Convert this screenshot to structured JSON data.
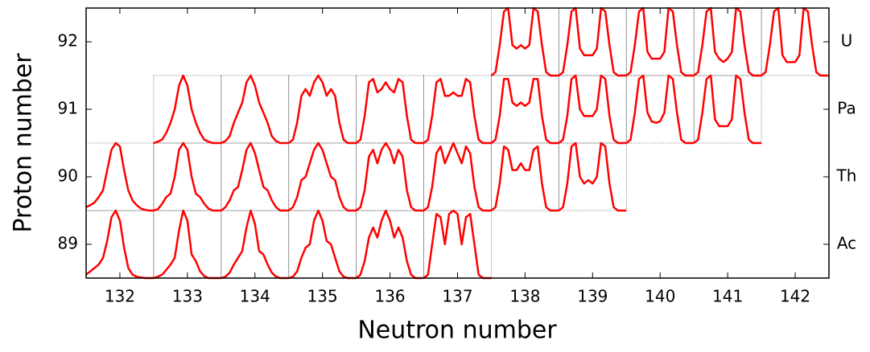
{
  "chart_data": {
    "type": "multiples",
    "xlabel": "Neutron number",
    "ylabel": "Proton number",
    "xlim": [
      131.5,
      142.5
    ],
    "xticks": [
      132,
      133,
      134,
      135,
      136,
      137,
      138,
      139,
      140,
      141,
      142
    ],
    "ylim": [
      88.5,
      92.5
    ],
    "yticks": [
      89,
      90,
      91,
      92
    ],
    "y2lim": [
      88.5,
      92.5
    ],
    "y2ticks": [
      {
        "value": 89,
        "label": "Ac"
      },
      {
        "value": 90,
        "label": "Th"
      },
      {
        "value": 91,
        "label": "Pa"
      },
      {
        "value": 92,
        "label": "U"
      }
    ],
    "value_lim": [
      0,
      1
    ],
    "color": "#ff0000",
    "cells": [
      {
        "n": 132,
        "z": 89,
        "values": [
          0.05,
          0.1,
          0.15,
          0.2,
          0.3,
          0.55,
          0.9,
          1,
          0.85,
          0.45,
          0.15,
          0.05,
          0.02,
          0.01,
          0,
          0,
          0
        ]
      },
      {
        "n": 133,
        "z": 89,
        "values": [
          0,
          0.02,
          0.05,
          0.12,
          0.2,
          0.3,
          0.7,
          1,
          0.85,
          0.35,
          0.25,
          0.1,
          0.03,
          0,
          0,
          0,
          0
        ]
      },
      {
        "n": 134,
        "z": 89,
        "values": [
          0,
          0.02,
          0.08,
          0.2,
          0.3,
          0.4,
          0.75,
          1,
          0.8,
          0.4,
          0.35,
          0.2,
          0.08,
          0.02,
          0,
          0,
          0
        ]
      },
      {
        "n": 135,
        "z": 89,
        "values": [
          0,
          0.02,
          0.1,
          0.3,
          0.45,
          0.5,
          0.85,
          1,
          0.85,
          0.55,
          0.5,
          0.3,
          0.1,
          0.02,
          0,
          0,
          0
        ]
      },
      {
        "n": 136,
        "z": 89,
        "values": [
          0,
          0.05,
          0.25,
          0.6,
          0.75,
          0.6,
          0.85,
          1,
          0.85,
          0.6,
          0.75,
          0.6,
          0.25,
          0.05,
          0,
          0,
          0
        ]
      },
      {
        "n": 137,
        "z": 89,
        "values": [
          0,
          0.05,
          0.5,
          0.95,
          0.9,
          0.5,
          0.95,
          1,
          0.95,
          0.5,
          0.9,
          0.95,
          0.5,
          0.05,
          0,
          0,
          0
        ]
      },
      {
        "n": 132,
        "z": 90,
        "values": [
          0.05,
          0.08,
          0.12,
          0.2,
          0.3,
          0.6,
          0.9,
          1,
          0.95,
          0.6,
          0.3,
          0.15,
          0.08,
          0.03,
          0.01,
          0,
          0
        ]
      },
      {
        "n": 133,
        "z": 90,
        "values": [
          0,
          0.02,
          0.1,
          0.2,
          0.25,
          0.5,
          0.9,
          1,
          0.9,
          0.5,
          0.25,
          0.2,
          0.1,
          0.03,
          0,
          0,
          0
        ]
      },
      {
        "n": 134,
        "z": 90,
        "values": [
          0,
          0.05,
          0.15,
          0.3,
          0.35,
          0.6,
          0.9,
          1,
          0.85,
          0.6,
          0.35,
          0.3,
          0.15,
          0.05,
          0,
          0,
          0
        ]
      },
      {
        "n": 135,
        "z": 90,
        "values": [
          0,
          0.05,
          0.2,
          0.45,
          0.5,
          0.7,
          0.9,
          1,
          0.9,
          0.7,
          0.5,
          0.45,
          0.2,
          0.05,
          0,
          0,
          0
        ]
      },
      {
        "n": 136,
        "z": 90,
        "values": [
          0,
          0.05,
          0.3,
          0.8,
          0.9,
          0.7,
          0.9,
          1,
          0.9,
          0.7,
          0.9,
          0.8,
          0.3,
          0.05,
          0,
          0,
          0
        ]
      },
      {
        "n": 137,
        "z": 90,
        "values": [
          0,
          0.05,
          0.35,
          0.85,
          0.95,
          0.7,
          0.85,
          1,
          0.85,
          0.7,
          0.95,
          0.85,
          0.35,
          0.05,
          0,
          0,
          0
        ]
      },
      {
        "n": 138,
        "z": 90,
        "values": [
          0,
          0.05,
          0.4,
          0.95,
          0.9,
          0.6,
          0.6,
          0.7,
          0.6,
          0.6,
          0.9,
          0.95,
          0.4,
          0.05,
          0,
          0,
          0
        ]
      },
      {
        "n": 139,
        "z": 90,
        "values": [
          0,
          0.05,
          0.4,
          0.95,
          1,
          0.5,
          0.4,
          0.45,
          0.4,
          0.5,
          1,
          0.95,
          0.4,
          0.05,
          0,
          0,
          0
        ]
      },
      {
        "n": 133,
        "z": 91,
        "values": [
          0,
          0.02,
          0.05,
          0.15,
          0.3,
          0.5,
          0.85,
          1,
          0.85,
          0.5,
          0.3,
          0.15,
          0.05,
          0.02,
          0,
          0,
          0
        ]
      },
      {
        "n": 134,
        "z": 91,
        "values": [
          0,
          0.03,
          0.1,
          0.3,
          0.45,
          0.6,
          0.9,
          1,
          0.85,
          0.6,
          0.45,
          0.3,
          0.1,
          0.03,
          0,
          0,
          0
        ]
      },
      {
        "n": 135,
        "z": 91,
        "values": [
          0,
          0.05,
          0.3,
          0.7,
          0.8,
          0.7,
          0.9,
          1,
          0.9,
          0.7,
          0.8,
          0.7,
          0.3,
          0.05,
          0,
          0,
          0
        ]
      },
      {
        "n": 136,
        "z": 91,
        "values": [
          0,
          0.05,
          0.4,
          0.9,
          0.95,
          0.75,
          0.8,
          0.9,
          0.8,
          0.75,
          0.95,
          0.9,
          0.4,
          0.05,
          0,
          0,
          0
        ]
      },
      {
        "n": 137,
        "z": 91,
        "values": [
          0,
          0.05,
          0.4,
          0.9,
          0.95,
          0.7,
          0.7,
          0.75,
          0.7,
          0.7,
          0.95,
          0.9,
          0.4,
          0.05,
          0,
          0,
          0
        ]
      },
      {
        "n": 138,
        "z": 91,
        "values": [
          0,
          0.05,
          0.4,
          0.95,
          0.95,
          0.6,
          0.55,
          0.6,
          0.55,
          0.6,
          0.95,
          0.95,
          0.4,
          0.05,
          0,
          0,
          0
        ]
      },
      {
        "n": 139,
        "z": 91,
        "values": [
          0,
          0.05,
          0.4,
          0.95,
          1,
          0.5,
          0.4,
          0.4,
          0.4,
          0.5,
          1,
          0.95,
          0.4,
          0.05,
          0,
          0,
          0
        ]
      },
      {
        "n": 140,
        "z": 91,
        "values": [
          0,
          0.05,
          0.45,
          0.95,
          1,
          0.45,
          0.32,
          0.3,
          0.32,
          0.45,
          1,
          0.95,
          0.45,
          0.05,
          0,
          0,
          0
        ]
      },
      {
        "n": 141,
        "z": 91,
        "values": [
          0,
          0.05,
          0.45,
          0.95,
          1,
          0.35,
          0.25,
          0.25,
          0.25,
          0.35,
          1,
          0.95,
          0.45,
          0.05,
          0,
          0,
          0
        ]
      },
      {
        "n": 138,
        "z": 92,
        "values": [
          0,
          0.05,
          0.45,
          0.95,
          1,
          0.45,
          0.4,
          0.45,
          0.4,
          0.45,
          1,
          0.95,
          0.45,
          0.05,
          0,
          0,
          0
        ]
      },
      {
        "n": 139,
        "z": 92,
        "values": [
          0,
          0.05,
          0.45,
          0.95,
          1,
          0.4,
          0.3,
          0.3,
          0.3,
          0.4,
          1,
          0.95,
          0.45,
          0.05,
          0,
          0,
          0
        ]
      },
      {
        "n": 140,
        "z": 92,
        "values": [
          0,
          0.05,
          0.45,
          0.95,
          1,
          0.35,
          0.25,
          0.25,
          0.25,
          0.35,
          1,
          0.95,
          0.45,
          0.05,
          0,
          0,
          0
        ]
      },
      {
        "n": 141,
        "z": 92,
        "values": [
          0,
          0.05,
          0.45,
          0.95,
          1,
          0.35,
          0.25,
          0.2,
          0.25,
          0.35,
          1,
          0.95,
          0.45,
          0.05,
          0,
          0,
          0
        ]
      },
      {
        "n": 142,
        "z": 92,
        "values": [
          0,
          0.05,
          0.45,
          0.95,
          1,
          0.3,
          0.2,
          0.2,
          0.2,
          0.3,
          1,
          0.95,
          0.45,
          0.05,
          0,
          0,
          0
        ]
      }
    ]
  }
}
